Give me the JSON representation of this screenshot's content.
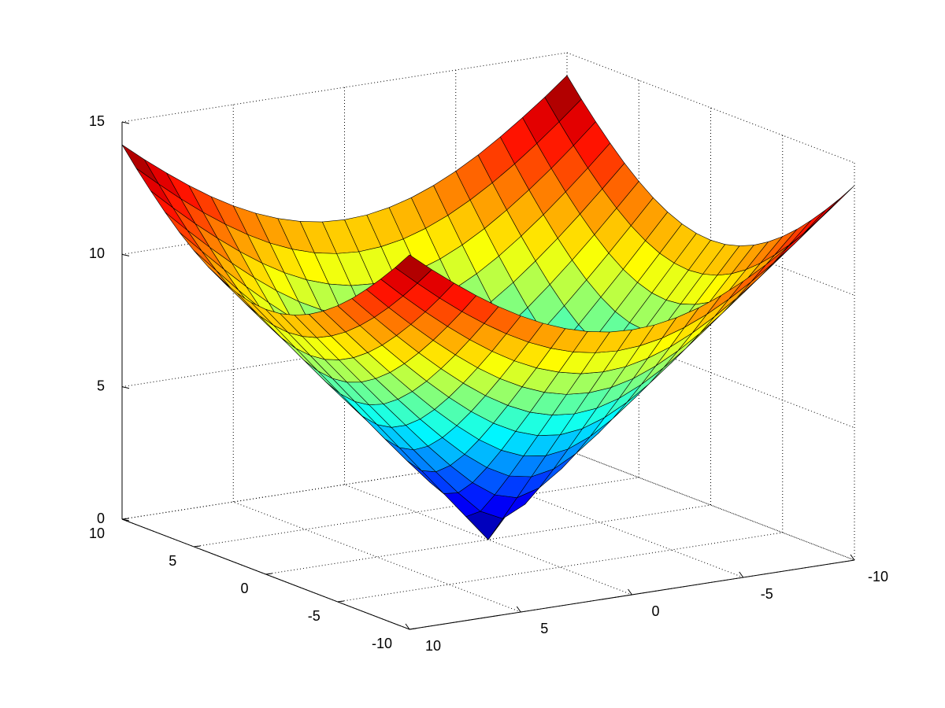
{
  "chart_data": {
    "type": "surface",
    "colormap": "jet",
    "grid": true,
    "x": [
      -10,
      -9,
      -8,
      -7,
      -6,
      -5,
      -4,
      -3,
      -2,
      -1,
      0,
      1,
      2,
      3,
      4,
      5,
      6,
      7,
      8,
      9,
      10
    ],
    "y": [
      -10,
      -9,
      -8,
      -7,
      -6,
      -5,
      -4,
      -3,
      -2,
      -1,
      0,
      1,
      2,
      3,
      4,
      5,
      6,
      7,
      8,
      9,
      10
    ],
    "z": [
      [
        14.14,
        13.45,
        12.81,
        12.21,
        11.66,
        11.18,
        10.77,
        10.44,
        10.2,
        10.05,
        10,
        10.05,
        10.2,
        10.44,
        10.77,
        11.18,
        11.66,
        12.21,
        12.81,
        13.45,
        14.14
      ],
      [
        13.45,
        12.73,
        12.04,
        11.4,
        10.82,
        10.3,
        9.85,
        9.49,
        9.22,
        9.06,
        9,
        9.06,
        9.22,
        9.49,
        9.85,
        10.3,
        10.82,
        11.4,
        12.04,
        12.73,
        13.45
      ],
      [
        12.81,
        12.04,
        11.31,
        10.63,
        10,
        9.43,
        8.94,
        8.54,
        8.25,
        8.06,
        8,
        8.06,
        8.25,
        8.54,
        8.94,
        9.43,
        10,
        10.63,
        11.31,
        12.04,
        12.81
      ],
      [
        12.21,
        11.4,
        10.63,
        9.9,
        9.22,
        8.6,
        8.06,
        7.62,
        7.28,
        7.07,
        7,
        7.07,
        7.28,
        7.62,
        8.06,
        8.6,
        9.22,
        9.9,
        10.63,
        11.4,
        12.21
      ],
      [
        11.66,
        10.82,
        10,
        9.22,
        8.49,
        7.81,
        7.21,
        6.71,
        6.32,
        6.08,
        6,
        6.08,
        6.32,
        6.71,
        7.21,
        7.81,
        8.49,
        9.22,
        10,
        10.82,
        11.66
      ],
      [
        11.18,
        10.3,
        9.43,
        8.6,
        7.81,
        7.07,
        6.4,
        5.83,
        5.39,
        5.1,
        5,
        5.1,
        5.39,
        5.83,
        6.4,
        7.07,
        7.81,
        8.6,
        9.43,
        10.3,
        11.18
      ],
      [
        10.77,
        9.85,
        8.94,
        8.06,
        7.21,
        6.4,
        5.66,
        5,
        4.47,
        4.12,
        4,
        4.12,
        4.47,
        5,
        5.66,
        6.4,
        7.21,
        8.06,
        8.94,
        9.85,
        10.77
      ],
      [
        10.44,
        9.49,
        8.54,
        7.62,
        6.71,
        5.83,
        5,
        4.24,
        3.61,
        3.16,
        3,
        3.16,
        3.61,
        4.24,
        5,
        5.83,
        6.71,
        7.62,
        8.54,
        9.49,
        10.44
      ],
      [
        10.2,
        9.22,
        8.25,
        7.28,
        6.32,
        5.39,
        4.47,
        3.61,
        2.83,
        2.24,
        2,
        2.24,
        2.83,
        3.61,
        4.47,
        5.39,
        6.32,
        7.28,
        8.25,
        9.22,
        10.2
      ],
      [
        10.05,
        9.06,
        8.06,
        7.07,
        6.08,
        5.1,
        4.12,
        3.16,
        2.24,
        1.41,
        1,
        1.41,
        2.24,
        3.16,
        4.12,
        5.1,
        6.08,
        7.07,
        8.06,
        9.06,
        10.05
      ],
      [
        10,
        9,
        8,
        7,
        6,
        5,
        4,
        3,
        2,
        1,
        0,
        1,
        2,
        3,
        4,
        5,
        6,
        7,
        8,
        9,
        10
      ],
      [
        10.05,
        9.06,
        8.06,
        7.07,
        6.08,
        5.1,
        4.12,
        3.16,
        2.24,
        1.41,
        1,
        1.41,
        2.24,
        3.16,
        4.12,
        5.1,
        6.08,
        7.07,
        8.06,
        9.06,
        10.05
      ],
      [
        10.2,
        9.22,
        8.25,
        7.28,
        6.32,
        5.39,
        4.47,
        3.61,
        2.83,
        2.24,
        2,
        2.24,
        2.83,
        3.61,
        4.47,
        5.39,
        6.32,
        7.28,
        8.25,
        9.22,
        10.2
      ],
      [
        10.44,
        9.49,
        8.54,
        7.62,
        6.71,
        5.83,
        5,
        4.24,
        3.61,
        3.16,
        3,
        3.16,
        3.61,
        4.24,
        5,
        5.83,
        6.71,
        7.62,
        8.54,
        9.49,
        10.44
      ],
      [
        10.77,
        9.85,
        8.94,
        8.06,
        7.21,
        6.4,
        5.66,
        5,
        4.47,
        4.12,
        4,
        4.12,
        4.47,
        5,
        5.66,
        6.4,
        7.21,
        8.06,
        8.94,
        9.85,
        10.77
      ],
      [
        11.18,
        10.3,
        9.43,
        8.6,
        7.81,
        7.07,
        6.4,
        5.83,
        5.39,
        5.1,
        5,
        5.1,
        5.39,
        5.83,
        6.4,
        7.07,
        7.81,
        8.6,
        9.43,
        10.3,
        11.18
      ],
      [
        11.66,
        10.82,
        10,
        9.22,
        8.49,
        7.81,
        7.21,
        6.71,
        6.32,
        6.08,
        6,
        6.08,
        6.32,
        6.71,
        7.21,
        7.81,
        8.49,
        9.22,
        10,
        10.82,
        11.66
      ],
      [
        12.21,
        11.4,
        10.63,
        9.9,
        9.22,
        8.6,
        8.06,
        7.62,
        7.28,
        7.07,
        7,
        7.07,
        7.28,
        7.62,
        8.06,
        8.6,
        9.22,
        9.9,
        10.63,
        11.4,
        12.21
      ],
      [
        12.81,
        12.04,
        11.31,
        10.63,
        10,
        9.43,
        8.94,
        8.54,
        8.25,
        8.06,
        8,
        8.06,
        8.25,
        8.54,
        8.94,
        9.43,
        10,
        10.63,
        11.31,
        12.04,
        12.81
      ],
      [
        13.45,
        12.73,
        12.04,
        11.4,
        10.82,
        10.3,
        9.85,
        9.49,
        9.22,
        9.06,
        9,
        9.06,
        9.22,
        9.49,
        9.85,
        10.3,
        10.82,
        11.4,
        12.04,
        12.73,
        13.45
      ],
      [
        14.14,
        13.45,
        12.81,
        12.21,
        11.66,
        11.18,
        10.77,
        10.44,
        10.2,
        10.05,
        10,
        10.05,
        10.2,
        10.44,
        10.77,
        11.18,
        11.66,
        12.21,
        12.81,
        13.45,
        14.14
      ]
    ],
    "xlim": [
      -10,
      10
    ],
    "ylim": [
      -10,
      10
    ],
    "zlim": [
      0,
      15
    ],
    "xticks": [
      -10,
      -5,
      0,
      5,
      10
    ],
    "yticks": [
      -10,
      -5,
      0,
      5,
      10
    ],
    "zticks": [
      0,
      5,
      10,
      15
    ]
  }
}
